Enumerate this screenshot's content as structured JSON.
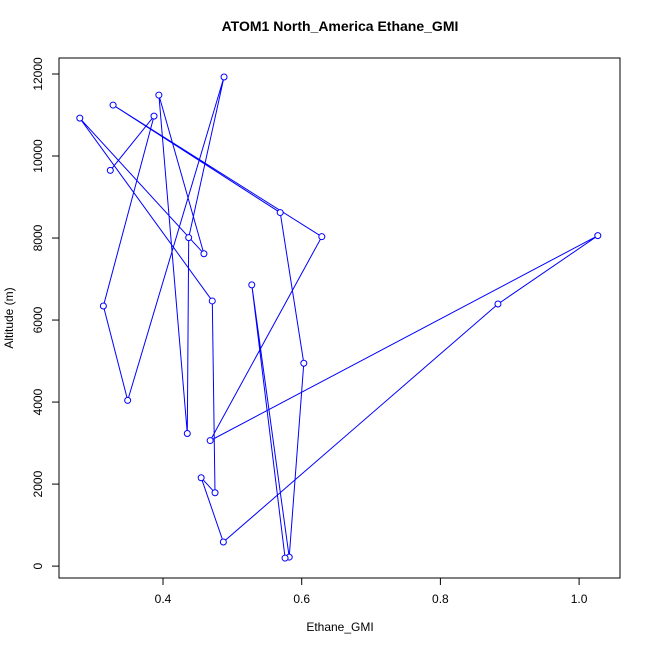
{
  "chart_data": {
    "type": "line",
    "title": "ATOM1 North_America Ethane_GMI",
    "x_label": "Ethane_GMI",
    "y_label": "Altitude (m)",
    "color": "#0000ff",
    "marker": "circle",
    "x": [
      0.324,
      0.387,
      0.314,
      0.349,
      0.488,
      0.437,
      0.435,
      0.394,
      0.459,
      0.28,
      0.471,
      0.475,
      0.455,
      0.487,
      0.883,
      1.027,
      0.468,
      0.629,
      0.328,
      0.569,
      0.603,
      0.582,
      0.528,
      0.576
    ],
    "values": [
      9650,
      10972,
      6343,
      4041,
      11927,
      8009,
      3233,
      11486,
      7617,
      10923,
      6466,
      1788,
      2155,
      588,
      6392,
      8058,
      3061,
      8033,
      11242,
      8621,
      4947,
      220,
      6858,
      196
    ],
    "xlim": [
      0.25,
      1.059
    ],
    "ylim": [
      -290,
      12390
    ],
    "xticks": [
      0.4,
      0.6,
      0.8,
      {
        "value": 1.0,
        "label": "1.0"
      }
    ],
    "yticks": [
      0,
      2000,
      4000,
      6000,
      8000,
      10000,
      12000
    ]
  }
}
